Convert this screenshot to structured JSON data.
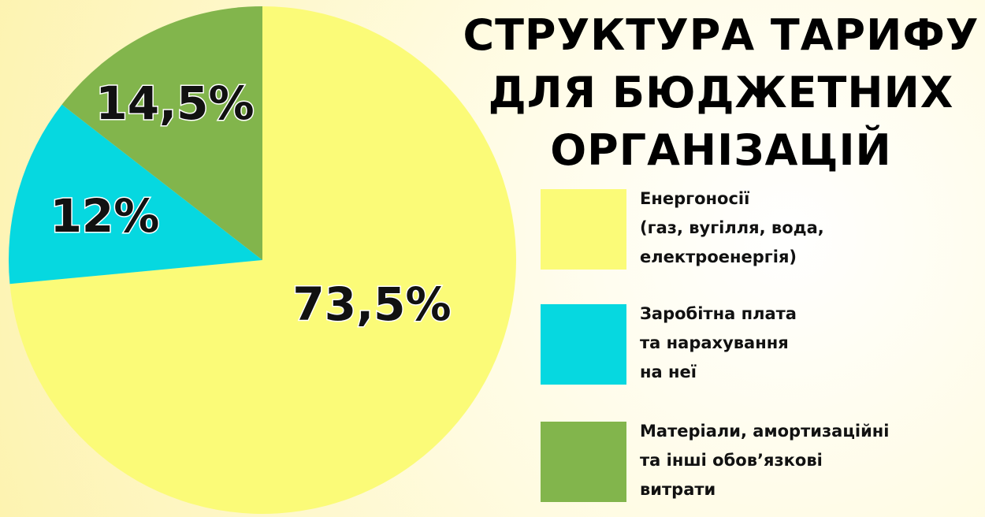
{
  "chart_data": {
    "type": "pie",
    "title": "СТРУКТУРА ТАРИФУ\nДЛЯ БЮДЖЕТНИХ\nОРГАНІЗАЦІЙ",
    "series": [
      {
        "name": "Енергоносії\n(газ, вугілля, вода,\nелектроенергія)",
        "color": "#fbfb78",
        "values": [
          73.5
        ],
        "value_labels": [
          "73,5%"
        ]
      },
      {
        "name": "Заробітна плата\nта нарахування\nна неї",
        "color": "#06d8e0",
        "values": [
          12
        ],
        "value_labels": [
          "12%"
        ]
      },
      {
        "name": "Матеріали, амортизаційні\nта інші обов’язкові\nвитрати",
        "color": "#82b54c",
        "values": [
          14.5
        ],
        "value_labels": [
          "14,5%"
        ]
      }
    ]
  }
}
